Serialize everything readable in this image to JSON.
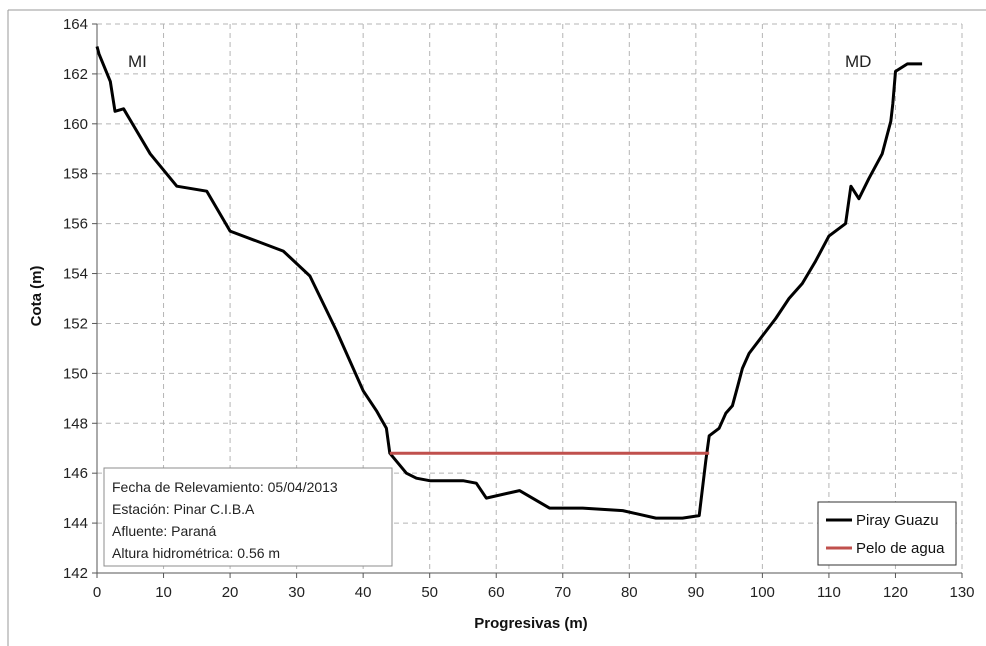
{
  "chart_data": {
    "type": "line",
    "xlabel": "Progresivas (m)",
    "ylabel": "Cota (m)",
    "xlim": [
      0,
      130
    ],
    "ylim": [
      142,
      164
    ],
    "xticks": [
      0,
      10,
      20,
      30,
      40,
      50,
      60,
      70,
      80,
      90,
      100,
      110,
      120,
      130
    ],
    "yticks": [
      142,
      144,
      146,
      148,
      150,
      152,
      154,
      156,
      158,
      160,
      162,
      164
    ],
    "grid": true,
    "legend_position": "bottom-right",
    "annotations": {
      "left_bank": "MI",
      "right_bank": "MD"
    },
    "info_box": {
      "fecha": "Fecha de Relevamiento: 05/04/2013",
      "estacion": "Estación: Pinar C.I.B.A",
      "afluente": "Afluente: Paraná",
      "altura": "Altura hidrométrica: 0.56 m"
    },
    "series": [
      {
        "name": "Piray Guazu",
        "color": "#000000",
        "x": [
          0,
          0.3,
          2,
          2.7,
          4,
          8,
          12,
          16.5,
          20,
          28,
          32,
          36,
          40,
          42,
          43.5,
          44,
          46.5,
          48,
          50,
          55,
          57,
          58.5,
          63.5,
          68,
          73,
          79,
          84,
          88,
          90.5,
          91.5,
          92,
          93.5,
          94.5,
          95.5,
          96.3,
          97,
          98,
          100,
          102,
          104,
          106,
          108,
          110,
          112.5,
          113.3,
          114.5,
          116,
          118,
          119.3,
          119.6,
          120,
          121.8,
          124
        ],
        "y": [
          163.1,
          162.8,
          161.7,
          160.5,
          160.6,
          158.8,
          157.5,
          157.3,
          155.7,
          154.9,
          153.9,
          151.7,
          149.3,
          148.5,
          147.8,
          146.8,
          146.0,
          145.8,
          145.7,
          145.7,
          145.6,
          145.0,
          145.3,
          144.6,
          144.6,
          144.5,
          144.2,
          144.2,
          144.3,
          146.5,
          147.5,
          147.8,
          148.4,
          148.7,
          149.5,
          150.2,
          150.8,
          151.5,
          152.2,
          153.0,
          153.6,
          154.5,
          155.5,
          156.0,
          157.5,
          157.0,
          157.8,
          158.8,
          160.1,
          160.8,
          162.1,
          162.4,
          162.4
        ]
      },
      {
        "name": "Pelo de agua",
        "color": "#c0504d",
        "x": [
          44,
          92
        ],
        "y": [
          146.8,
          146.8
        ]
      }
    ]
  }
}
